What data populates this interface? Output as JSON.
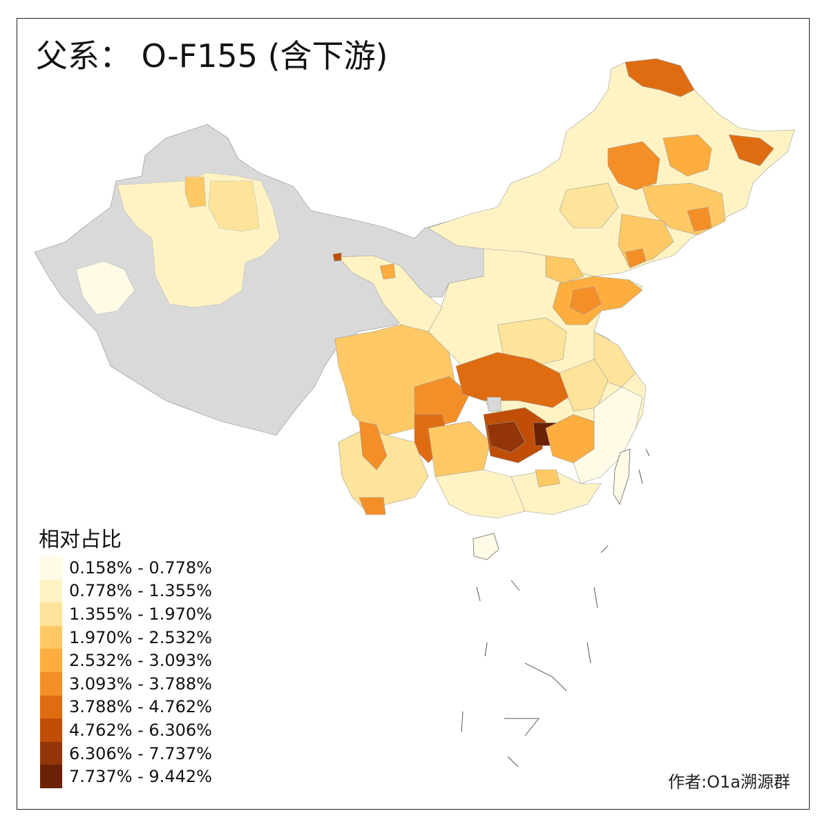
{
  "title": "父系： O-F155 (含下游)",
  "legend": {
    "title": "相对占比",
    "classes": [
      {
        "label": "0.158% - 0.778%",
        "color": "#fffbe6"
      },
      {
        "label": "0.778% - 1.355%",
        "color": "#fff3c4"
      },
      {
        "label": "1.355% - 1.970%",
        "color": "#fee49a"
      },
      {
        "label": "1.970% - 2.532%",
        "color": "#fec965"
      },
      {
        "label": "2.532% - 3.093%",
        "color": "#fdae3f"
      },
      {
        "label": "3.093% - 3.788%",
        "color": "#f48f28"
      },
      {
        "label": "3.788% - 4.762%",
        "color": "#e06c12"
      },
      {
        "label": "4.762% - 6.306%",
        "color": "#c04e06"
      },
      {
        "label": "6.306% - 7.737%",
        "color": "#933508"
      },
      {
        "label": "7.737% - 9.442%",
        "color": "#6a2106"
      }
    ]
  },
  "no_data_color": "#d9d9d9",
  "credit": "作者:O1a溯源群"
}
